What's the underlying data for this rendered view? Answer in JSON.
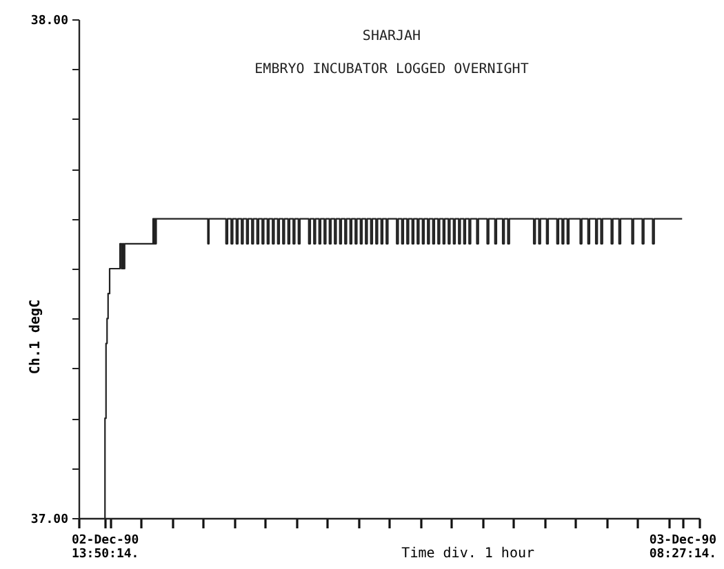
{
  "chart_data": {
    "type": "step",
    "title": "SHARJAH",
    "subtitle": "EMBRYO INCUBATOR LOGGED OVERNIGHT",
    "xlabel": "Time div. 1 hour",
    "ylabel": "Ch.1  degC",
    "xlim": [
      "1990-12-02T13:00",
      "1990-12-03T09:00"
    ],
    "xticks": [
      {
        "value": "1990-12-02T13:50:14",
        "label": "02-Dec-90 13:50:14."
      },
      {
        "value": "1990-12-03T08:27:14",
        "label": "03-Dec-90 08:27:14."
      },
      {
        "value": "1990-12-02T13:00",
        "label": null
      },
      {
        "value": "1990-12-02T14:00",
        "label": null
      },
      {
        "value": "1990-12-02T15:00",
        "label": null
      },
      {
        "value": "1990-12-02T16:00",
        "label": null
      },
      {
        "value": "1990-12-02T17:00",
        "label": null
      },
      {
        "value": "1990-12-02T18:00",
        "label": null
      },
      {
        "value": "1990-12-02T19:00",
        "label": null
      },
      {
        "value": "1990-12-02T20:00",
        "label": null
      },
      {
        "value": "1990-12-02T21:00",
        "label": null
      },
      {
        "value": "1990-12-02T22:00",
        "label": null
      },
      {
        "value": "1990-12-02T23:00",
        "label": null
      },
      {
        "value": "1990-12-03T00:00",
        "label": null
      },
      {
        "value": "1990-12-03T01:00",
        "label": null
      },
      {
        "value": "1990-12-03T02:00",
        "label": null
      },
      {
        "value": "1990-12-03T03:00",
        "label": null
      },
      {
        "value": "1990-12-03T04:00",
        "label": null
      },
      {
        "value": "1990-12-03T05:00",
        "label": null
      },
      {
        "value": "1990-12-03T06:00",
        "label": null
      },
      {
        "value": "1990-12-03T07:00",
        "label": null
      },
      {
        "value": "1990-12-03T08:00",
        "label": null
      },
      {
        "value": "1990-12-03T09:00",
        "label": null
      }
    ],
    "ylim": [
      37.0,
      38.0
    ],
    "yticks": [
      {
        "value": 37.0,
        "label": "37.00"
      },
      {
        "value": 37.1,
        "label": null
      },
      {
        "value": 37.2,
        "label": null
      },
      {
        "value": 37.3,
        "label": null
      },
      {
        "value": 37.4,
        "label": null
      },
      {
        "value": 37.5,
        "label": null
      },
      {
        "value": 37.6,
        "label": null
      },
      {
        "value": 37.7,
        "label": null
      },
      {
        "value": 37.8,
        "label": null
      },
      {
        "value": 37.9,
        "label": null
      },
      {
        "value": 38.0,
        "label": "38.00"
      }
    ],
    "grid": false,
    "marker": "none",
    "line_style": "solid",
    "series": [
      {
        "color": "#222222",
        "x": [
          "1990-12-02T13:50",
          "1990-12-02T13:51",
          "1990-12-02T13:53",
          "1990-12-02T13:55",
          "1990-12-02T13:57",
          "1990-12-02T14:00",
          "1990-12-02T14:20",
          "1990-12-02T14:23",
          "1990-12-02T14:25",
          "1990-12-02T14:27",
          "1990-12-02T14:29",
          "1990-12-02T15:24",
          "1990-12-02T15:26",
          "1990-12-02T15:27",
          "1990-12-02T15:29",
          "1990-12-02T15:30",
          "1990-12-02T17:10",
          "1990-12-02T17:12",
          "1990-12-02T17:45",
          "1990-12-02T17:48",
          "1990-12-02T17:55",
          "1990-12-02T17:58",
          "1990-12-02T18:05",
          "1990-12-02T18:08",
          "1990-12-02T18:15",
          "1990-12-02T18:18",
          "1990-12-02T18:25",
          "1990-12-02T18:28",
          "1990-12-02T18:35",
          "1990-12-02T18:38",
          "1990-12-02T18:45",
          "1990-12-02T18:48",
          "1990-12-02T18:55",
          "1990-12-02T18:58",
          "1990-12-02T19:05",
          "1990-12-02T19:08",
          "1990-12-02T19:15",
          "1990-12-02T19:18",
          "1990-12-02T19:25",
          "1990-12-02T19:28",
          "1990-12-02T19:35",
          "1990-12-02T19:38",
          "1990-12-02T19:45",
          "1990-12-02T19:48",
          "1990-12-02T19:55",
          "1990-12-02T19:58",
          "1990-12-02T20:05",
          "1990-12-02T20:08",
          "1990-12-02T20:25",
          "1990-12-02T20:28",
          "1990-12-02T20:35",
          "1990-12-02T20:38",
          "1990-12-02T20:45",
          "1990-12-02T20:48",
          "1990-12-02T20:55",
          "1990-12-02T20:58",
          "1990-12-02T21:05",
          "1990-12-02T21:08",
          "1990-12-02T21:15",
          "1990-12-02T21:18",
          "1990-12-02T21:25",
          "1990-12-02T21:28",
          "1990-12-02T21:35",
          "1990-12-02T21:38",
          "1990-12-02T21:45",
          "1990-12-02T21:48",
          "1990-12-02T21:55",
          "1990-12-02T21:58",
          "1990-12-02T22:05",
          "1990-12-02T22:08",
          "1990-12-02T22:15",
          "1990-12-02T22:18",
          "1990-12-02T22:25",
          "1990-12-02T22:28",
          "1990-12-02T22:35",
          "1990-12-02T22:38",
          "1990-12-02T22:45",
          "1990-12-02T22:48",
          "1990-12-02T22:55",
          "1990-12-02T22:58",
          "1990-12-02T23:15",
          "1990-12-02T23:18",
          "1990-12-02T23:25",
          "1990-12-02T23:28",
          "1990-12-02T23:35",
          "1990-12-02T23:38",
          "1990-12-02T23:45",
          "1990-12-02T23:48",
          "1990-12-02T23:55",
          "1990-12-02T23:58",
          "1990-12-03T00:05",
          "1990-12-03T00:08",
          "1990-12-03T00:15",
          "1990-12-03T00:18",
          "1990-12-03T00:25",
          "1990-12-03T00:28",
          "1990-12-03T00:35",
          "1990-12-03T00:38",
          "1990-12-03T00:45",
          "1990-12-03T00:48",
          "1990-12-03T00:55",
          "1990-12-03T00:58",
          "1990-12-03T01:05",
          "1990-12-03T01:08",
          "1990-12-03T01:15",
          "1990-12-03T01:18",
          "1990-12-03T01:25",
          "1990-12-03T01:28",
          "1990-12-03T01:35",
          "1990-12-03T01:38",
          "1990-12-03T01:50",
          "1990-12-03T01:53",
          "1990-12-03T02:10",
          "1990-12-03T02:13",
          "1990-12-03T02:25",
          "1990-12-03T02:28",
          "1990-12-03T02:40",
          "1990-12-03T02:43",
          "1990-12-03T02:50",
          "1990-12-03T02:53",
          "1990-12-03T03:40",
          "1990-12-03T03:43",
          "1990-12-03T03:50",
          "1990-12-03T03:53",
          "1990-12-03T04:05",
          "1990-12-03T04:08",
          "1990-12-03T04:25",
          "1990-12-03T04:28",
          "1990-12-03T04:35",
          "1990-12-03T04:38",
          "1990-12-03T04:45",
          "1990-12-03T04:48",
          "1990-12-03T05:10",
          "1990-12-03T05:13",
          "1990-12-03T05:25",
          "1990-12-03T05:28",
          "1990-12-03T05:40",
          "1990-12-03T05:43",
          "1990-12-03T05:50",
          "1990-12-03T05:53",
          "1990-12-03T06:10",
          "1990-12-03T06:13",
          "1990-12-03T06:25",
          "1990-12-03T06:28",
          "1990-12-03T06:50",
          "1990-12-03T06:53",
          "1990-12-03T07:10",
          "1990-12-03T07:13",
          "1990-12-03T07:30",
          "1990-12-03T07:33",
          "1990-12-03T08:27"
        ],
        "values": [
          37.0,
          37.2,
          37.35,
          37.4,
          37.45,
          37.5,
          37.55,
          37.5,
          37.55,
          37.5,
          37.55,
          37.6,
          37.55,
          37.6,
          37.55,
          37.6,
          37.55,
          37.6,
          37.55,
          37.6,
          37.55,
          37.6,
          37.55,
          37.6,
          37.55,
          37.6,
          37.55,
          37.6,
          37.55,
          37.6,
          37.55,
          37.6,
          37.55,
          37.6,
          37.55,
          37.6,
          37.55,
          37.6,
          37.55,
          37.6,
          37.55,
          37.6,
          37.55,
          37.6,
          37.55,
          37.6,
          37.55,
          37.6,
          37.55,
          37.6,
          37.55,
          37.6,
          37.55,
          37.6,
          37.55,
          37.6,
          37.55,
          37.6,
          37.55,
          37.6,
          37.55,
          37.6,
          37.55,
          37.6,
          37.55,
          37.6,
          37.55,
          37.6,
          37.55,
          37.6,
          37.55,
          37.6,
          37.55,
          37.6,
          37.55,
          37.6,
          37.55,
          37.6,
          37.55,
          37.6,
          37.55,
          37.6,
          37.55,
          37.6,
          37.55,
          37.6,
          37.55,
          37.6,
          37.55,
          37.6,
          37.55,
          37.6,
          37.55,
          37.6,
          37.55,
          37.6,
          37.55,
          37.6,
          37.55,
          37.6,
          37.55,
          37.6,
          37.55,
          37.6,
          37.55,
          37.6,
          37.55,
          37.6,
          37.55,
          37.6,
          37.55,
          37.6,
          37.55,
          37.6,
          37.55,
          37.6,
          37.55,
          37.6,
          37.55,
          37.6,
          37.55,
          37.6,
          37.55,
          37.6,
          37.55,
          37.6,
          37.55,
          37.6,
          37.55,
          37.6,
          37.55,
          37.6,
          37.55,
          37.6,
          37.55,
          37.6,
          37.55,
          37.6,
          37.55,
          37.6,
          37.55,
          37.6,
          37.55,
          37.6,
          37.55,
          37.6,
          37.55,
          37.6,
          37.55,
          37.6,
          37.6
        ]
      }
    ]
  }
}
